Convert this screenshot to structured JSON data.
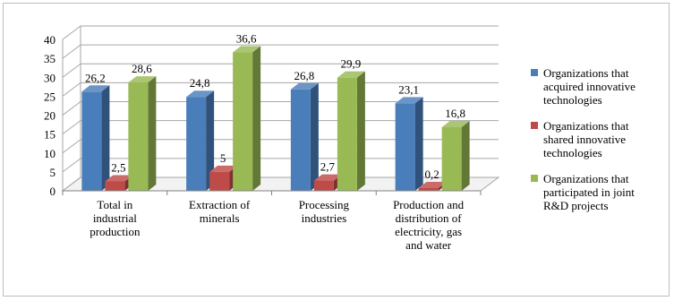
{
  "chart_data": {
    "type": "bar",
    "categories": [
      [
        "Total in",
        "industrial",
        "production"
      ],
      [
        "Extraction of",
        "minerals"
      ],
      [
        "Processing",
        "industries"
      ],
      [
        "Production and",
        "distribution of",
        "electricity, gas",
        "and water"
      ]
    ],
    "series": [
      {
        "name": "Organizations that acquired innovative technologies",
        "legend_lines": [
          "Organizations that",
          "acquired innovative",
          "technologies"
        ],
        "values": [
          26.2,
          24.8,
          26.8,
          23.1
        ],
        "labels": [
          "26,2",
          "24,8",
          "26,8",
          "23,1"
        ],
        "color": "#4a7ebb"
      },
      {
        "name": "Organizations that shared innovative technologies",
        "legend_lines": [
          "Organizations that",
          "shared innovative",
          "technologies"
        ],
        "values": [
          2.5,
          5,
          2.7,
          0.2
        ],
        "labels": [
          "2,5",
          "5",
          "2,7",
          "0,2"
        ],
        "color": "#be4b48"
      },
      {
        "name": "Organizations that participated in joint R&D projects",
        "legend_lines": [
          "Organizations that",
          "participated in joint",
          "R&D projects"
        ],
        "values": [
          28.6,
          36.6,
          29.9,
          16.8
        ],
        "labels": [
          "28,6",
          "36,6",
          "29,9",
          "16,8"
        ],
        "color": "#98b954"
      }
    ],
    "ylim": [
      0,
      40
    ],
    "yticks": [
      0,
      5,
      10,
      15,
      20,
      25,
      30,
      35,
      40
    ],
    "grid": true,
    "legend_position": "right",
    "style": "3d-clustered-column"
  }
}
